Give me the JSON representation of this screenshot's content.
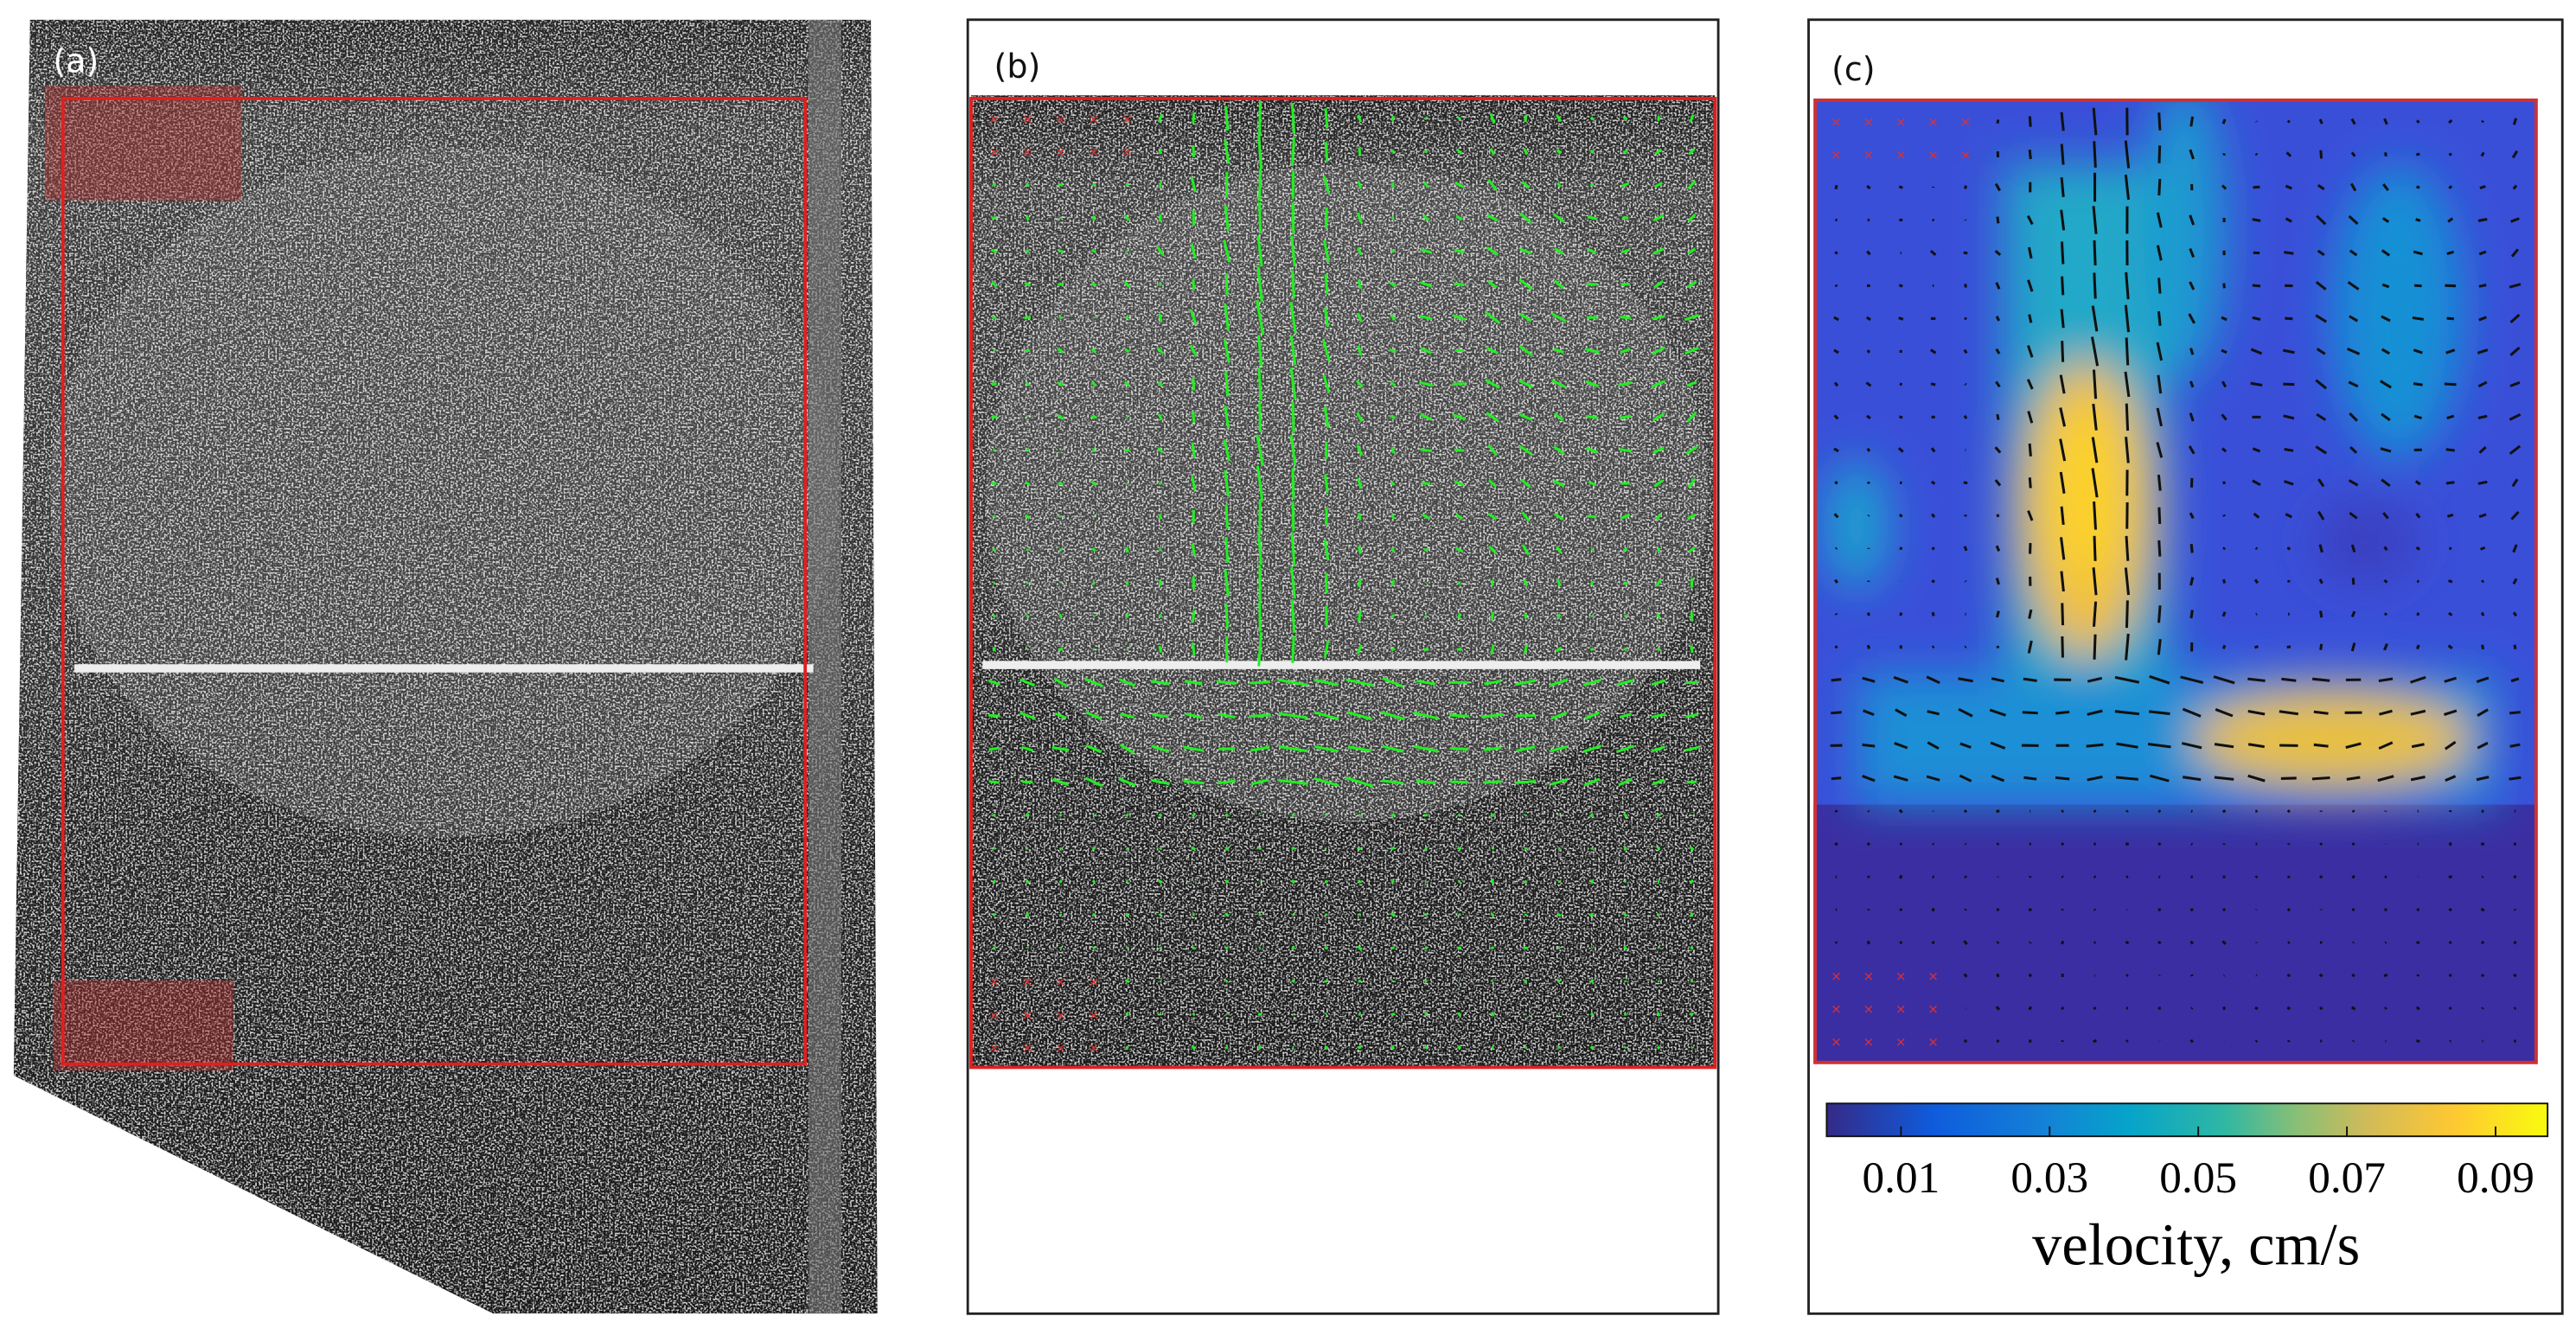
{
  "panels": [
    {
      "label": "(a)"
    },
    {
      "label": "(b)"
    },
    {
      "label": "(c)"
    }
  ],
  "colorbar": {
    "ticks": [
      0.01,
      0.03,
      0.05,
      0.07,
      0.09
    ],
    "range": [
      0,
      0.097
    ],
    "label": "velocity, cm/s"
  }
}
